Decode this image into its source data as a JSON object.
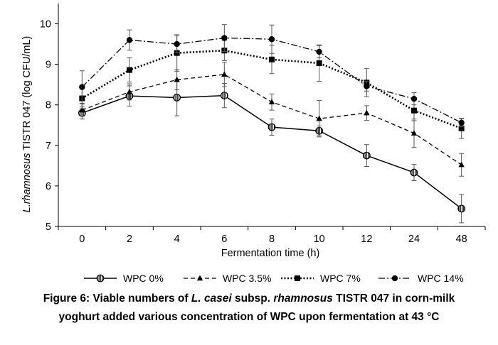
{
  "chart_data": {
    "type": "line",
    "xlabel": "Fermentation time (h)",
    "ylabel_italic": "L.rhamnosus",
    "ylabel_rest": " TISTR 047 (log CFU/mL)",
    "categories": [
      "0",
      "2",
      "4",
      "6",
      "8",
      "10",
      "12",
      "24",
      "48"
    ],
    "ylim": [
      5,
      10.5
    ],
    "yticks": [
      "5",
      "6",
      "7",
      "8",
      "9",
      "10"
    ],
    "grid": false,
    "legend_position": "bottom",
    "series": [
      {
        "name": "WPC 0%",
        "marker": "circle-striped",
        "dash": "solid",
        "values": [
          7.8,
          8.22,
          8.18,
          8.23,
          7.45,
          7.36,
          6.75,
          6.33,
          5.44
        ],
        "errors": [
          0.15,
          0.25,
          0.45,
          0.3,
          0.2,
          0.12,
          0.27,
          0.2,
          0.35
        ]
      },
      {
        "name": "WPC 3.5%",
        "marker": "triangle",
        "dash": "dashed",
        "values": [
          7.87,
          8.32,
          8.62,
          8.75,
          8.07,
          7.66,
          7.8,
          7.3,
          6.52
        ],
        "errors": [
          0.15,
          0.2,
          0.25,
          0.3,
          0.2,
          0.45,
          0.18,
          0.35,
          0.28
        ]
      },
      {
        "name": "WPC 7%",
        "marker": "square",
        "dash": "dotted",
        "values": [
          8.16,
          8.86,
          9.28,
          9.34,
          9.12,
          9.03,
          8.55,
          7.86,
          7.42
        ],
        "errors": [
          0.25,
          0.3,
          0.45,
          0.25,
          0.35,
          0.45,
          0.35,
          0.25,
          0.25
        ]
      },
      {
        "name": "WPC 14%",
        "marker": "circle",
        "dash": "dashdot",
        "values": [
          8.44,
          9.6,
          9.5,
          9.65,
          9.62,
          9.31,
          8.46,
          8.15,
          7.56
        ],
        "errors": [
          0.4,
          0.25,
          0.22,
          0.33,
          0.35,
          0.15,
          0.12,
          0.15,
          0.1
        ]
      }
    ]
  },
  "caption": {
    "line1_a": "Figure 6: Viable numbers of ",
    "line1_b": "L. casei",
    "line1_c": " subsp. ",
    "line1_d": "rhamnosus",
    "line1_e": " TISTR 047 in corn-milk",
    "line2": "yoghurt added various concentration of WPC upon fermentation at 43 °C"
  }
}
